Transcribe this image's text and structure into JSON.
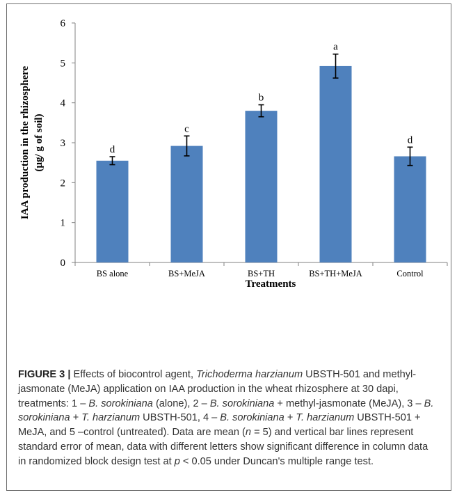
{
  "chart_data": {
    "type": "bar",
    "categories": [
      "BS alone",
      "BS+MeJA",
      "BS+TH",
      "BS+TH+MeJA",
      "Control"
    ],
    "values": [
      2.55,
      2.92,
      3.8,
      4.92,
      2.66
    ],
    "errors": [
      0.1,
      0.25,
      0.15,
      0.3,
      0.23
    ],
    "significance_letters": [
      "d",
      "c",
      "b",
      "a",
      "d"
    ],
    "ylabel_line1": "IAA production in the rhizosphere",
    "ylabel_line2": "(μg/ g of soil)",
    "xlabel": "Treatments",
    "ylim": [
      0,
      6
    ],
    "yticks": [
      0,
      1,
      2,
      3,
      4,
      5,
      6
    ],
    "bar_color": "#4F81BD",
    "grid": false,
    "legend": "none"
  },
  "caption": {
    "label": "FIGURE 3 |",
    "seg1": " Effects of biocontrol agent, ",
    "seg2_italic": "Trichoderma harzianum",
    "seg3": " UBSTH-501 and methyl-jasmonate (MeJA) application on IAA production in the wheat rhizosphere at 30 dapi, treatments: 1 – ",
    "seg4_italic": "B. sorokiniana",
    "seg5": " (alone), 2 – ",
    "seg6_italic": "B. sorokiniana",
    "seg7": " + methyl-jasmonate (MeJA), 3 – ",
    "seg8_italic": "B. sorokiniana",
    "seg9": " + ",
    "seg10_italic": "T. harzianum",
    "seg11": " UBSTH-501, 4 – ",
    "seg12_italic": "B. sorokiniana",
    "seg13": " + ",
    "seg14_italic": "T. harzianum",
    "seg15": " UBSTH-501 + MeJA, and 5 –control (untreated). Data are mean (",
    "seg16_italic": "n",
    "seg17": " = 5) and vertical bar lines represent standard error of mean, data with different letters show significant difference in column data in randomized block design test at ",
    "seg18_italic": "p",
    "seg19": " < 0.05 under Duncan's multiple range test."
  }
}
